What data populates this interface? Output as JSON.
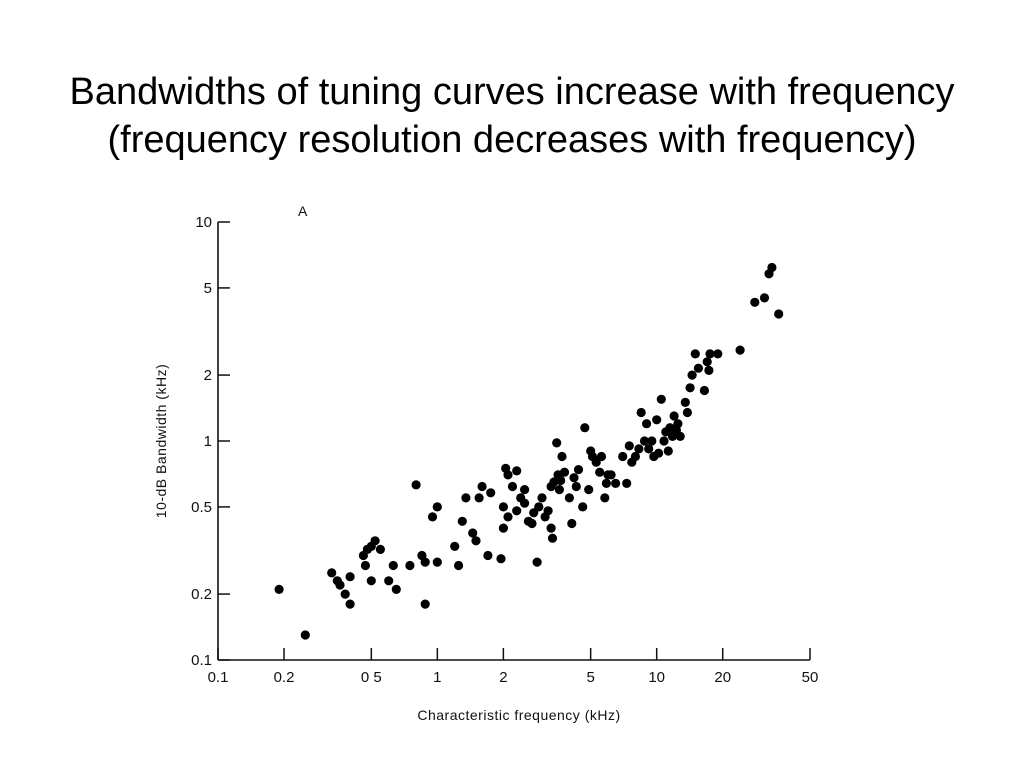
{
  "title": {
    "line1": "Bandwidths of tuning curves increase with frequency",
    "line2": "(frequency resolution decreases with frequency)"
  },
  "chart_data": {
    "type": "scatter",
    "panel_label": "A",
    "xlabel": "Characteristic frequency (kHz)",
    "ylabel": "10-dB Bandwidth (kHz)",
    "xscale": "log",
    "yscale": "log",
    "xlim": [
      0.1,
      50
    ],
    "ylim": [
      0.1,
      10
    ],
    "xticks": [
      {
        "value": 0.1,
        "label": "0.1"
      },
      {
        "value": 0.2,
        "label": "0.2"
      },
      {
        "value": 0.5,
        "label": "0 5"
      },
      {
        "value": 1,
        "label": "1"
      },
      {
        "value": 2,
        "label": "2"
      },
      {
        "value": 5,
        "label": "5"
      },
      {
        "value": 10,
        "label": "10"
      },
      {
        "value": 20,
        "label": "20"
      },
      {
        "value": 50,
        "label": "50"
      }
    ],
    "yticks": [
      {
        "value": 0.1,
        "label": "0.1"
      },
      {
        "value": 0.2,
        "label": "0.2"
      },
      {
        "value": 0.5,
        "label": "0.5"
      },
      {
        "value": 1,
        "label": "1"
      },
      {
        "value": 2,
        "label": "2"
      },
      {
        "value": 5,
        "label": "5"
      },
      {
        "value": 10,
        "label": "10"
      }
    ],
    "grid": false,
    "marker_color": "#000000",
    "points": [
      [
        0.19,
        0.21
      ],
      [
        0.25,
        0.13
      ],
      [
        0.33,
        0.25
      ],
      [
        0.35,
        0.23
      ],
      [
        0.36,
        0.22
      ],
      [
        0.38,
        0.2
      ],
      [
        0.4,
        0.24
      ],
      [
        0.4,
        0.18
      ],
      [
        0.46,
        0.3
      ],
      [
        0.47,
        0.27
      ],
      [
        0.48,
        0.32
      ],
      [
        0.5,
        0.33
      ],
      [
        0.5,
        0.23
      ],
      [
        0.52,
        0.35
      ],
      [
        0.55,
        0.32
      ],
      [
        0.6,
        0.23
      ],
      [
        0.63,
        0.27
      ],
      [
        0.65,
        0.21
      ],
      [
        0.75,
        0.27
      ],
      [
        0.8,
        0.63
      ],
      [
        0.85,
        0.3
      ],
      [
        0.88,
        0.28
      ],
      [
        0.88,
        0.18
      ],
      [
        0.95,
        0.45
      ],
      [
        1.0,
        0.5
      ],
      [
        1.0,
        0.28
      ],
      [
        1.2,
        0.33
      ],
      [
        1.25,
        0.27
      ],
      [
        1.3,
        0.43
      ],
      [
        1.35,
        0.55
      ],
      [
        1.45,
        0.38
      ],
      [
        1.5,
        0.35
      ],
      [
        1.55,
        0.55
      ],
      [
        1.6,
        0.62
      ],
      [
        1.7,
        0.3
      ],
      [
        1.75,
        0.58
      ],
      [
        1.95,
        0.29
      ],
      [
        2.0,
        0.5
      ],
      [
        2.0,
        0.4
      ],
      [
        2.05,
        0.75
      ],
      [
        2.1,
        0.7
      ],
      [
        2.1,
        0.45
      ],
      [
        2.2,
        0.62
      ],
      [
        2.3,
        0.48
      ],
      [
        2.3,
        0.73
      ],
      [
        2.4,
        0.55
      ],
      [
        2.5,
        0.6
      ],
      [
        2.5,
        0.52
      ],
      [
        2.6,
        0.43
      ],
      [
        2.7,
        0.42
      ],
      [
        2.75,
        0.47
      ],
      [
        2.85,
        0.28
      ],
      [
        2.9,
        0.5
      ],
      [
        3.0,
        0.55
      ],
      [
        3.1,
        0.45
      ],
      [
        3.2,
        0.48
      ],
      [
        3.3,
        0.62
      ],
      [
        3.3,
        0.4
      ],
      [
        3.35,
        0.36
      ],
      [
        3.4,
        0.65
      ],
      [
        3.5,
        0.98
      ],
      [
        3.55,
        0.7
      ],
      [
        3.6,
        0.6
      ],
      [
        3.65,
        0.66
      ],
      [
        3.7,
        0.85
      ],
      [
        3.8,
        0.72
      ],
      [
        4.0,
        0.55
      ],
      [
        4.1,
        0.42
      ],
      [
        4.2,
        0.68
      ],
      [
        4.3,
        0.62
      ],
      [
        4.4,
        0.74
      ],
      [
        4.6,
        0.5
      ],
      [
        4.7,
        1.15
      ],
      [
        4.9,
        0.6
      ],
      [
        5.0,
        0.9
      ],
      [
        5.1,
        0.85
      ],
      [
        5.3,
        0.8
      ],
      [
        5.5,
        0.72
      ],
      [
        5.6,
        0.85
      ],
      [
        5.8,
        0.55
      ],
      [
        5.9,
        0.64
      ],
      [
        6.0,
        0.7
      ],
      [
        6.2,
        0.7
      ],
      [
        6.5,
        0.64
      ],
      [
        7.0,
        0.85
      ],
      [
        7.3,
        0.64
      ],
      [
        7.5,
        0.95
      ],
      [
        7.7,
        0.8
      ],
      [
        8.0,
        0.85
      ],
      [
        8.3,
        0.92
      ],
      [
        8.5,
        1.35
      ],
      [
        8.8,
        1.0
      ],
      [
        9.0,
        1.2
      ],
      [
        9.2,
        0.92
      ],
      [
        9.5,
        1.0
      ],
      [
        9.7,
        0.85
      ],
      [
        10.0,
        1.25
      ],
      [
        10.2,
        0.88
      ],
      [
        10.5,
        1.55
      ],
      [
        10.8,
        1.0
      ],
      [
        11.0,
        1.1
      ],
      [
        11.3,
        0.9
      ],
      [
        11.5,
        1.15
      ],
      [
        11.8,
        1.05
      ],
      [
        12.0,
        1.3
      ],
      [
        12.3,
        1.12
      ],
      [
        12.5,
        1.2
      ],
      [
        12.8,
        1.05
      ],
      [
        13.5,
        1.5
      ],
      [
        13.8,
        1.35
      ],
      [
        14.2,
        1.75
      ],
      [
        14.5,
        2.0
      ],
      [
        15.0,
        2.5
      ],
      [
        15.5,
        2.15
      ],
      [
        16.5,
        1.7
      ],
      [
        17.0,
        2.3
      ],
      [
        17.3,
        2.1
      ],
      [
        17.5,
        2.5
      ],
      [
        19.0,
        2.5
      ],
      [
        24.0,
        2.6
      ],
      [
        28.0,
        4.3
      ],
      [
        31.0,
        4.5
      ],
      [
        32.5,
        5.8
      ],
      [
        33.5,
        6.2
      ],
      [
        36.0,
        3.8
      ]
    ]
  }
}
